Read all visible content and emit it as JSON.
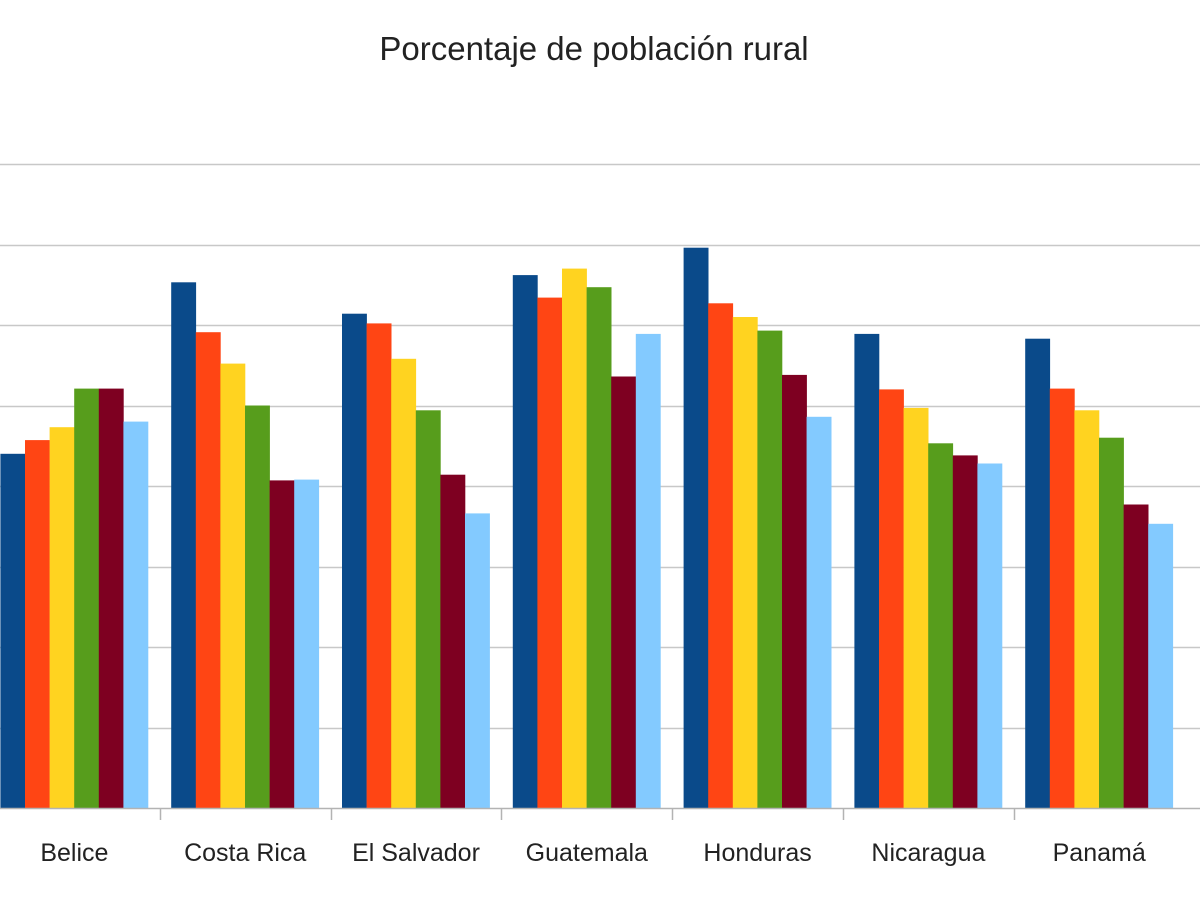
{
  "chart_data": {
    "type": "bar",
    "title": "Porcentaje de población rural",
    "xlabel": "",
    "ylabel": "",
    "ylim": [
      0,
      80
    ],
    "grid": true,
    "legend": "none",
    "categories": [
      "Belice",
      "Costa Rica",
      "El Salvador",
      "Guatemala",
      "Honduras",
      "Nicaragua",
      "Panamá"
    ],
    "series": [
      {
        "color": "#0a4a8a",
        "values": [
          44.0,
          65.3,
          61.4,
          66.2,
          69.6,
          58.9,
          58.3
        ]
      },
      {
        "color": "#ff4514",
        "values": [
          45.7,
          59.1,
          60.2,
          63.4,
          62.7,
          52.0,
          52.1
        ]
      },
      {
        "color": "#ffd320",
        "values": [
          47.3,
          55.2,
          55.8,
          67.0,
          61.0,
          49.7,
          49.4
        ]
      },
      {
        "color": "#579d1c",
        "values": [
          52.1,
          50.0,
          49.4,
          64.7,
          59.3,
          45.3,
          46.0
        ]
      },
      {
        "color": "#7e0021",
        "values": [
          52.1,
          40.7,
          41.4,
          53.6,
          53.8,
          43.8,
          37.7
        ]
      },
      {
        "color": "#83caff",
        "values": [
          48.0,
          40.8,
          36.6,
          58.9,
          48.6,
          42.8,
          35.3
        ]
      }
    ]
  }
}
